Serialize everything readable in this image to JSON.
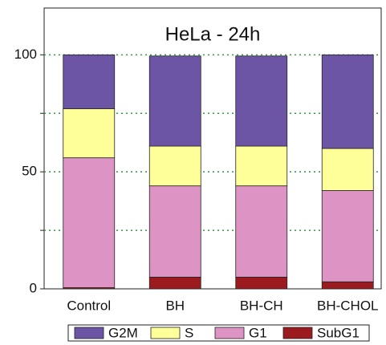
{
  "chart_data": {
    "type": "stacked_bar",
    "title": "HeLa - 24h",
    "categories": [
      "Control",
      "BH",
      "BH-CH",
      "BH-CHOL"
    ],
    "series": [
      {
        "name": "SubG1",
        "color": "#9b1b1e",
        "values": [
          0.5,
          5,
          5,
          3
        ]
      },
      {
        "name": "G1",
        "color": "#dd93c3",
        "values": [
          55.5,
          39,
          39,
          39
        ]
      },
      {
        "name": "S",
        "color": "#ffff99",
        "values": [
          21,
          17,
          17,
          18
        ]
      },
      {
        "name": "G2M",
        "color": "#6d55a6",
        "values": [
          23,
          38.5,
          38.5,
          40
        ]
      }
    ],
    "ylim": [
      0,
      120
    ],
    "yticks": [
      0,
      50,
      100
    ],
    "minor_yticks": [
      25,
      75
    ],
    "grid": true,
    "grid_color": "#2e9a3e",
    "legend": "bottom"
  }
}
